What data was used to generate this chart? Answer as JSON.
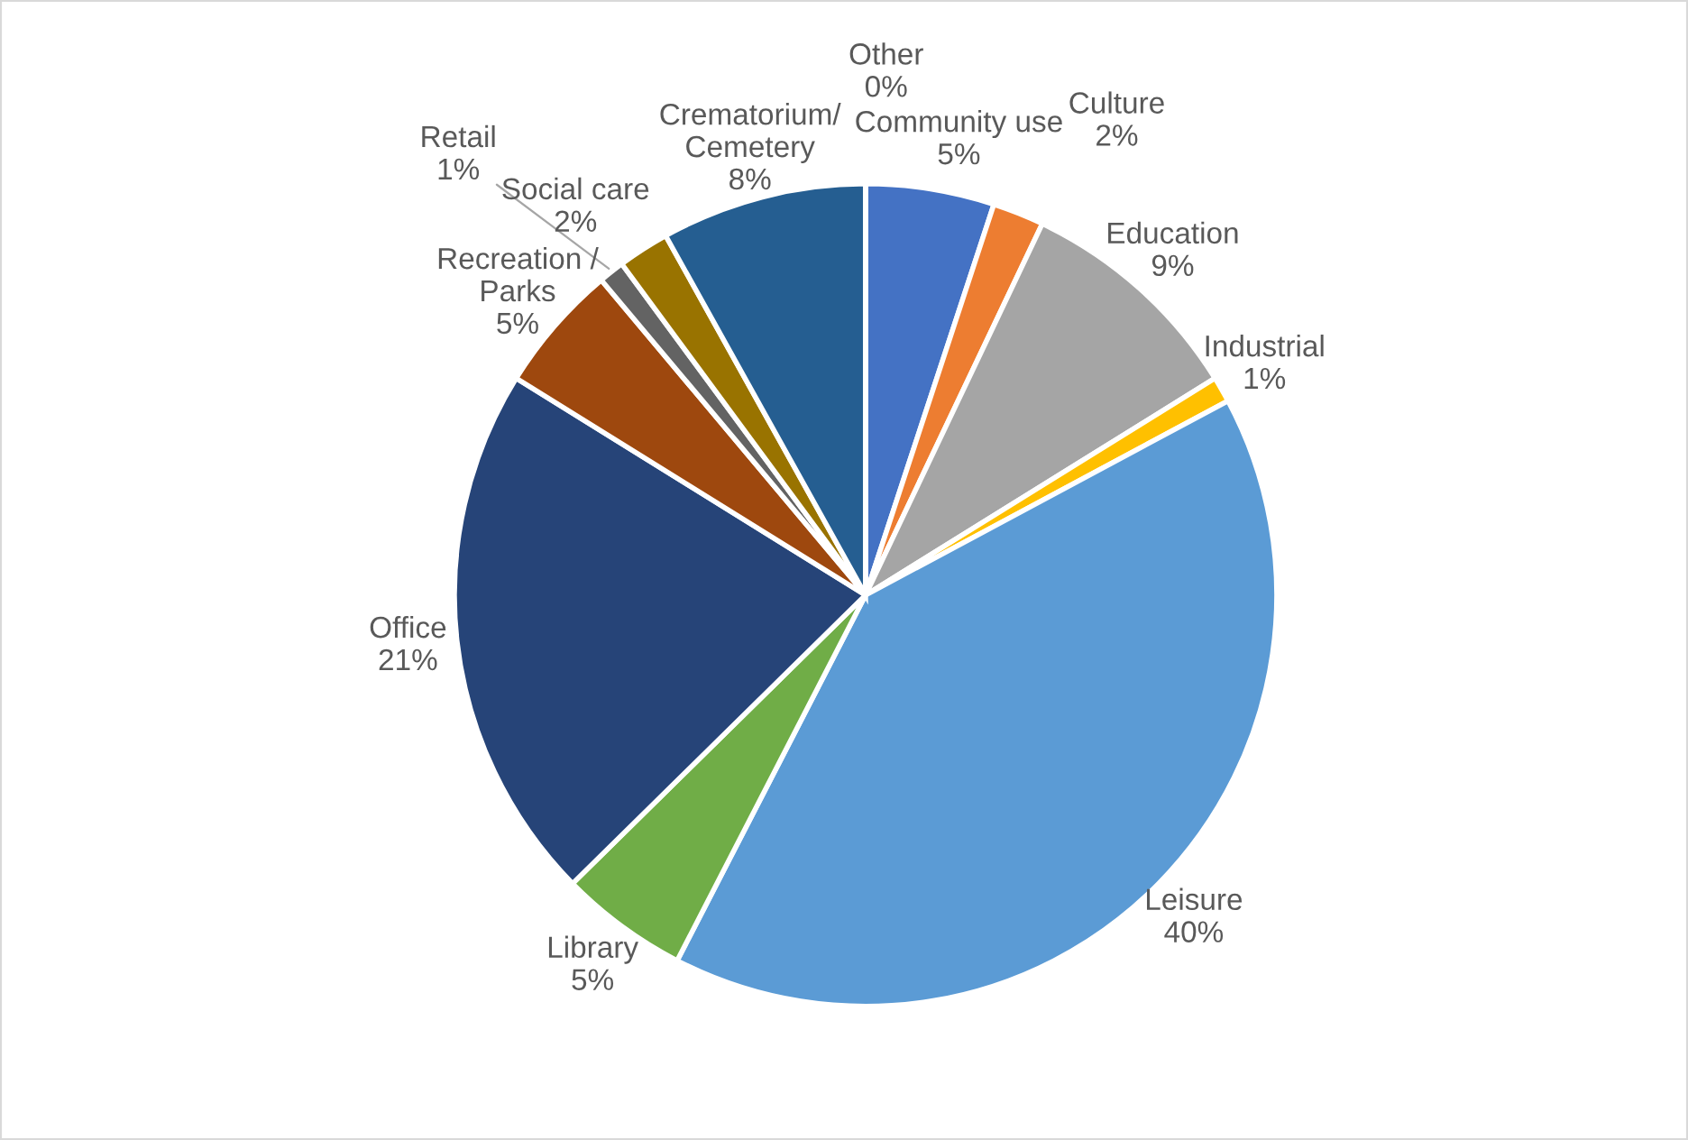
{
  "chart_data": {
    "type": "pie",
    "categories": [
      "Community use",
      "Culture",
      "Education",
      "Industrial",
      "Leisure",
      "Library",
      "Office",
      "Recreation / Parks",
      "Retail",
      "Social care",
      "Crematorium/Cemetery",
      "Other"
    ],
    "values": [
      5,
      2,
      9,
      1,
      40,
      5,
      21,
      5,
      1,
      2,
      8,
      0
    ],
    "value_labels": [
      "5%",
      "2%",
      "9%",
      "1%",
      "40%",
      "5%",
      "21%",
      "5%",
      "1%",
      "2%",
      "8%",
      "0%"
    ],
    "colors": [
      "#4472c4",
      "#ed7d31",
      "#a5a5a5",
      "#ffc000",
      "#5b9bd5",
      "#70ad47",
      "#264478",
      "#9e480e",
      "#636363",
      "#997300",
      "#255e91",
      "#43682b"
    ],
    "legend": false
  }
}
